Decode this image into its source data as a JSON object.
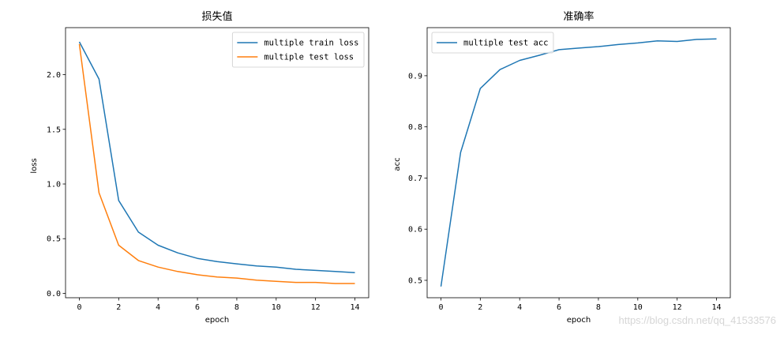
{
  "chart_data": [
    {
      "type": "line",
      "title": "损失值",
      "xlabel": "epoch",
      "ylabel": "loss",
      "x": [
        0,
        1,
        2,
        3,
        4,
        5,
        6,
        7,
        8,
        9,
        10,
        11,
        12,
        13,
        14
      ],
      "xlim": [
        -0.7,
        14.7
      ],
      "ylim": [
        -0.04,
        2.43
      ],
      "xticks": [
        0,
        2,
        4,
        6,
        8,
        10,
        12,
        14
      ],
      "xtick_labels": [
        "0",
        "2",
        "4",
        "6",
        "8",
        "10",
        "12",
        "14"
      ],
      "yticks": [
        0.0,
        0.5,
        1.0,
        1.5,
        2.0
      ],
      "ytick_labels": [
        "0.0",
        "0.5",
        "1.0",
        "1.5",
        "2.0"
      ],
      "legend_position": "top-right",
      "series": [
        {
          "name": "multiple train loss",
          "color": "#1f77b4",
          "values": [
            2.3,
            1.96,
            0.85,
            0.56,
            0.44,
            0.37,
            0.32,
            0.29,
            0.27,
            0.25,
            0.24,
            0.22,
            0.21,
            0.2,
            0.19
          ]
        },
        {
          "name": "multiple test loss",
          "color": "#ff7f0e",
          "values": [
            2.28,
            0.92,
            0.44,
            0.3,
            0.24,
            0.2,
            0.17,
            0.15,
            0.14,
            0.12,
            0.11,
            0.1,
            0.1,
            0.09,
            0.09
          ]
        }
      ]
    },
    {
      "type": "line",
      "title": "准确率",
      "xlabel": "epoch",
      "ylabel": "acc",
      "x": [
        0,
        1,
        2,
        3,
        4,
        5,
        6,
        7,
        8,
        9,
        10,
        11,
        12,
        13,
        14
      ],
      "xlim": [
        -0.7,
        14.7
      ],
      "ylim": [
        0.466,
        0.994
      ],
      "xticks": [
        0,
        2,
        4,
        6,
        8,
        10,
        12,
        14
      ],
      "xtick_labels": [
        "0",
        "2",
        "4",
        "6",
        "8",
        "10",
        "12",
        "14"
      ],
      "yticks": [
        0.5,
        0.6,
        0.7,
        0.8,
        0.9
      ],
      "ytick_labels": [
        "0.5",
        "0.6",
        "0.7",
        "0.8",
        "0.9"
      ],
      "legend_position": "top-left",
      "series": [
        {
          "name": "multiple test acc",
          "color": "#1f77b4",
          "values": [
            0.488,
            0.75,
            0.875,
            0.912,
            0.93,
            0.94,
            0.951,
            0.954,
            0.957,
            0.961,
            0.964,
            0.968,
            0.967,
            0.971,
            0.972
          ]
        }
      ]
    }
  ],
  "watermark": "https://blog.csdn.net/qq_41533576"
}
